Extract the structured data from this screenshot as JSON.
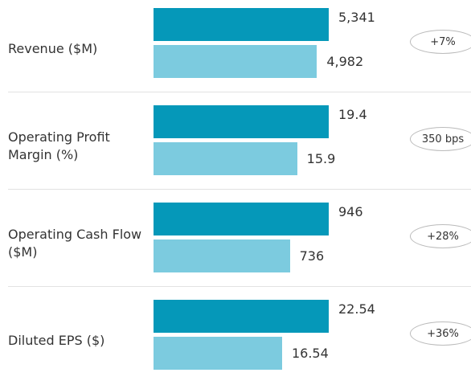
{
  "chart_data": {
    "type": "bar",
    "categories": [
      "Revenue ($M)",
      "Operating Profit Margin (%)",
      "Operating Cash Flow ($M)",
      "Diluted EPS ($)"
    ],
    "series": [
      {
        "color": "#0598b9",
        "values": [
          5341,
          19.4,
          946,
          22.54
        ],
        "value_labels": [
          "5,341",
          "19.4",
          "946",
          "22.54"
        ]
      },
      {
        "color": "#7ccbdf",
        "values": [
          4982,
          15.9,
          736,
          16.54
        ],
        "value_labels": [
          "4,982",
          "15.9",
          "736",
          "16.54"
        ]
      }
    ],
    "changes": [
      "+7%",
      "350 bps",
      "+28%",
      "+36%"
    ]
  }
}
